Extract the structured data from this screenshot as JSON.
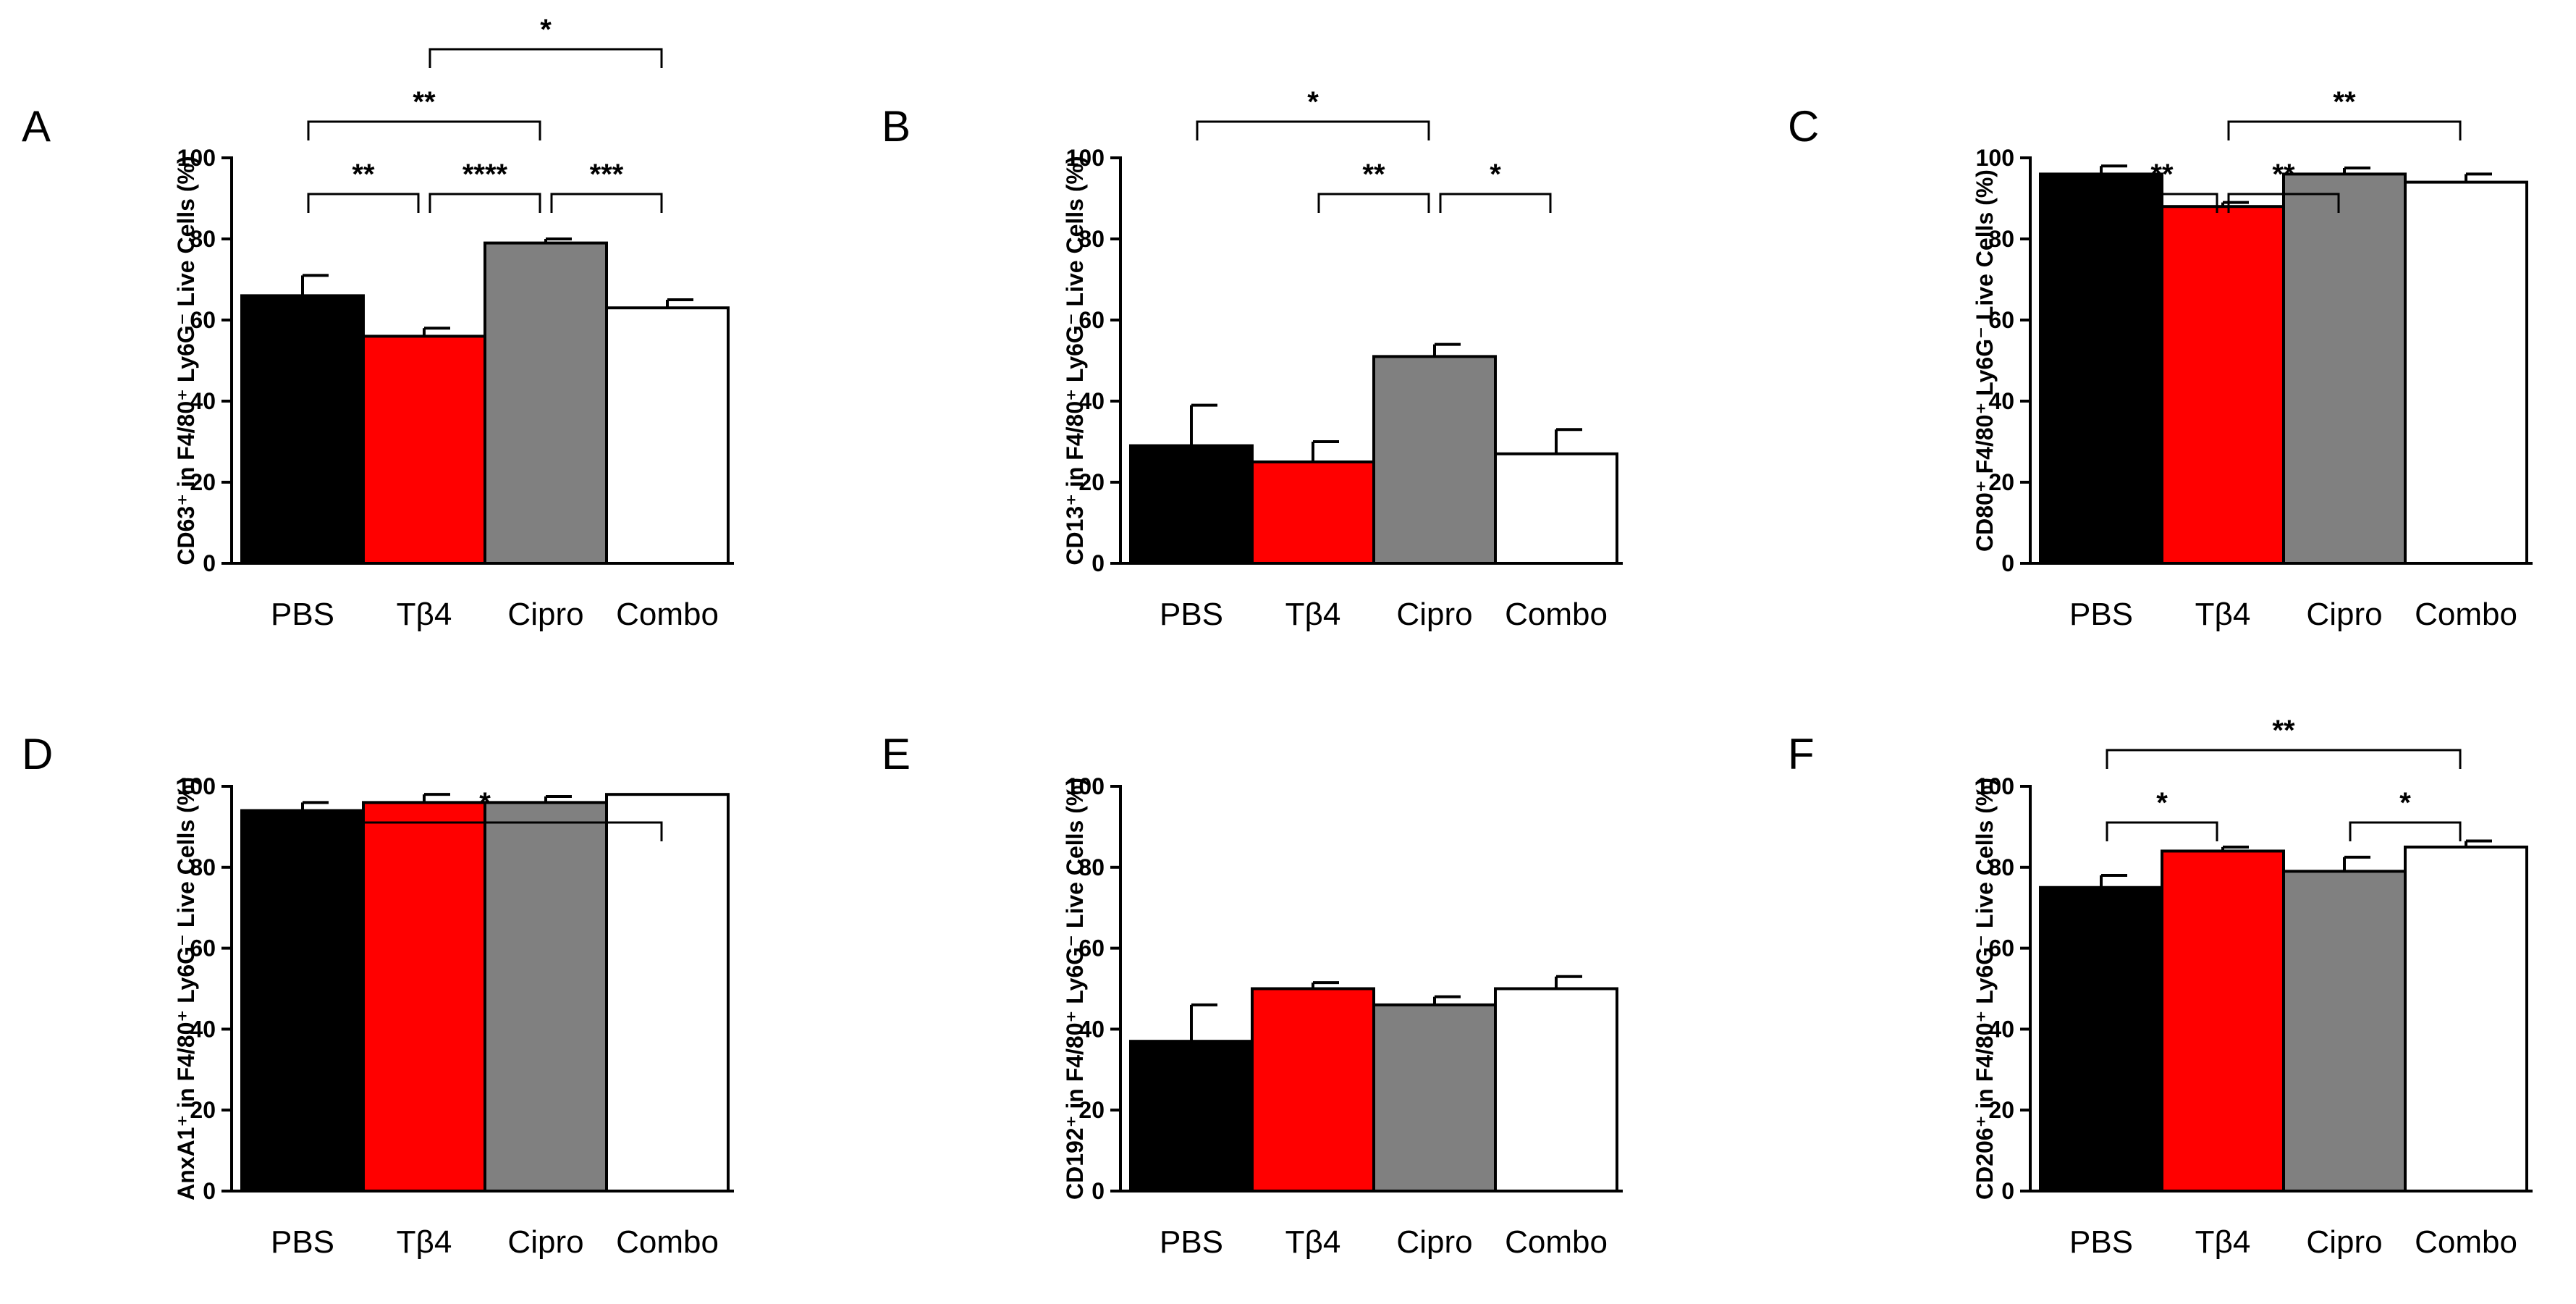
{
  "chart_data": [
    {
      "panel": "A",
      "type": "bar",
      "categories": [
        "PBS",
        "Tβ4",
        "Cipro",
        "Combo"
      ],
      "colors": [
        "#000000",
        "#ff0000",
        "#808080",
        "#ffffff"
      ],
      "values": [
        66,
        56,
        79,
        63
      ],
      "errors": [
        5,
        2,
        1,
        2
      ],
      "ylabel": "CD63⁺ in F4/80⁺ Ly6G⁻ Live Cells (%)",
      "ylim": [
        0,
        100
      ],
      "yticks": [
        "0",
        "20",
        "40",
        "60",
        "80",
        "100"
      ],
      "comparisons": [
        {
          "from": 0,
          "to": 1,
          "level": 0,
          "label": "**"
        },
        {
          "from": 1,
          "to": 2,
          "level": 0,
          "label": "****"
        },
        {
          "from": 2,
          "to": 3,
          "level": 0,
          "label": "***"
        },
        {
          "from": 0,
          "to": 2,
          "level": 1,
          "label": "**"
        },
        {
          "from": 1,
          "to": 3,
          "level": 2,
          "label": "*"
        }
      ]
    },
    {
      "panel": "B",
      "type": "bar",
      "categories": [
        "PBS",
        "Tβ4",
        "Cipro",
        "Combo"
      ],
      "colors": [
        "#000000",
        "#ff0000",
        "#808080",
        "#ffffff"
      ],
      "values": [
        29,
        25,
        51,
        27
      ],
      "errors": [
        10,
        5,
        3,
        6
      ],
      "ylabel": "CD13⁺ in F4/80⁺ Ly6G⁻ Live Cells (%)",
      "ylim": [
        0,
        100
      ],
      "yticks": [
        "0",
        "20",
        "40",
        "60",
        "80",
        "100"
      ],
      "comparisons": [
        {
          "from": 1,
          "to": 2,
          "level": 0,
          "label": "**"
        },
        {
          "from": 2,
          "to": 3,
          "level": 0,
          "label": "*"
        },
        {
          "from": 0,
          "to": 2,
          "level": 1,
          "label": "*"
        }
      ]
    },
    {
      "panel": "C",
      "type": "bar",
      "categories": [
        "PBS",
        "Tβ4",
        "Cipro",
        "Combo"
      ],
      "colors": [
        "#000000",
        "#ff0000",
        "#808080",
        "#ffffff"
      ],
      "values": [
        96,
        88,
        96,
        94
      ],
      "errors": [
        2,
        1,
        1.5,
        2
      ],
      "ylabel": "CD80⁺ F4/80⁺ Ly6G⁻ Live Cells (%)",
      "ylim": [
        0,
        100
      ],
      "yticks": [
        "0",
        "20",
        "40",
        "60",
        "80",
        "100"
      ],
      "comparisons": [
        {
          "from": 0,
          "to": 1,
          "level": 0,
          "label": "**"
        },
        {
          "from": 1,
          "to": 2,
          "level": 0,
          "label": "**"
        },
        {
          "from": 1,
          "to": 3,
          "level": 1,
          "label": "**"
        }
      ]
    },
    {
      "panel": "D",
      "type": "bar",
      "categories": [
        "PBS",
        "Tβ4",
        "Cipro",
        "Combo"
      ],
      "colors": [
        "#000000",
        "#ff0000",
        "#808080",
        "#ffffff"
      ],
      "values": [
        94,
        96,
        96,
        98
      ],
      "errors": [
        2,
        2,
        1.5,
        0
      ],
      "ylabel": "AnxA1⁺ in F4/80⁺ Ly6G⁻ Live Cells (%)",
      "ylim": [
        0,
        100
      ],
      "yticks": [
        "0",
        "20",
        "40",
        "60",
        "80",
        "100"
      ],
      "comparisons": [
        {
          "from": 0,
          "to": 3,
          "level": 0,
          "label": "*"
        }
      ]
    },
    {
      "panel": "E",
      "type": "bar",
      "categories": [
        "PBS",
        "Tβ4",
        "Cipro",
        "Combo"
      ],
      "colors": [
        "#000000",
        "#ff0000",
        "#808080",
        "#ffffff"
      ],
      "values": [
        37,
        50,
        46,
        50
      ],
      "errors": [
        9,
        1.5,
        2,
        3
      ],
      "ylabel": "CD192⁺ in F4/80⁺ Ly6G⁻ Live Cells (%)",
      "ylim": [
        0,
        100
      ],
      "yticks": [
        "0",
        "20",
        "40",
        "60",
        "80",
        "100"
      ],
      "comparisons": []
    },
    {
      "panel": "F",
      "type": "bar",
      "categories": [
        "PBS",
        "Tβ4",
        "Cipro",
        "Combo"
      ],
      "colors": [
        "#000000",
        "#ff0000",
        "#808080",
        "#ffffff"
      ],
      "values": [
        75,
        84,
        79,
        85
      ],
      "errors": [
        3,
        1,
        3.5,
        1.5
      ],
      "ylabel": "CD206⁺ in F4/80⁺ Ly6G⁻ Live Cells (%)",
      "ylim": [
        0,
        100
      ],
      "yticks": [
        "0",
        "20",
        "40",
        "60",
        "80",
        "100"
      ],
      "comparisons": [
        {
          "from": 0,
          "to": 1,
          "level": 0,
          "label": "*"
        },
        {
          "from": 2,
          "to": 3,
          "level": 0,
          "label": "*"
        },
        {
          "from": 0,
          "to": 3,
          "level": 1,
          "label": "**"
        }
      ]
    }
  ]
}
